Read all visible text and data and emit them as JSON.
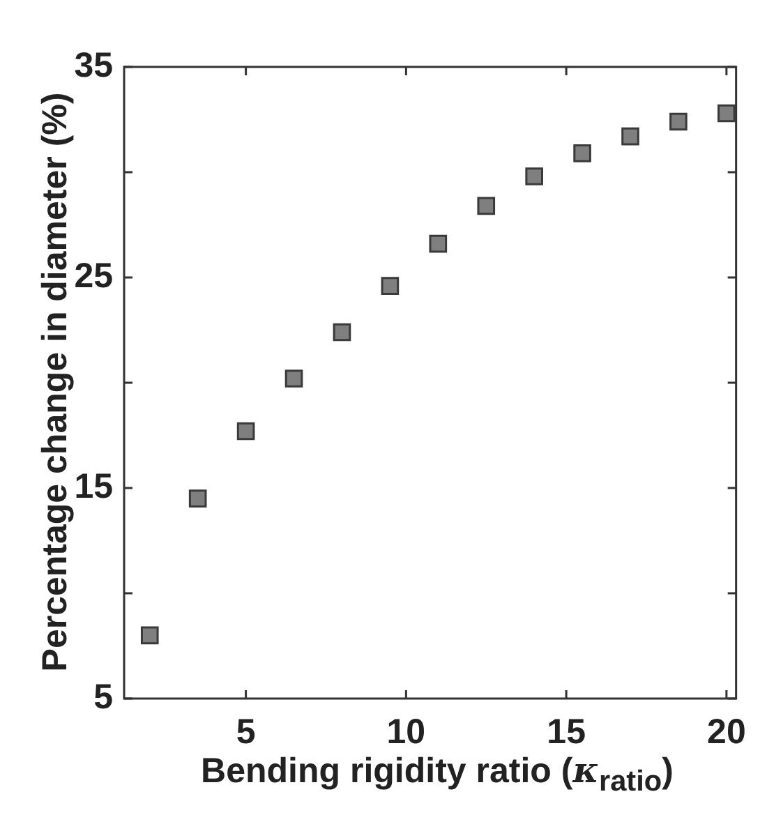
{
  "chart_data": {
    "type": "scatter",
    "xlabel": "Bending rigidity ratio (κ$_{ratio}$)",
    "ylabel": "Percentage change in diameter (%)",
    "x": [
      2,
      3.5,
      5,
      6.5,
      8,
      9.5,
      11,
      12.5,
      14,
      15.5,
      17,
      18.5,
      20
    ],
    "series": [
      {
        "color": "#7f7f7f",
        "values": [
          8.0,
          14.5,
          17.7,
          20.2,
          22.4,
          24.6,
          26.6,
          28.4,
          29.8,
          30.9,
          31.7,
          32.4,
          32.8
        ]
      }
    ],
    "xlim": [
      1.2,
      20.3
    ],
    "xticks": [
      5,
      10,
      15,
      20
    ],
    "ylim": [
      5,
      35
    ],
    "yticks": [
      5,
      {
        "value": 10,
        "label": null
      },
      15,
      {
        "value": 20,
        "label": null
      },
      25,
      {
        "value": 30,
        "label": null
      },
      35
    ],
    "marker": "square",
    "grid": false,
    "legend": false
  }
}
